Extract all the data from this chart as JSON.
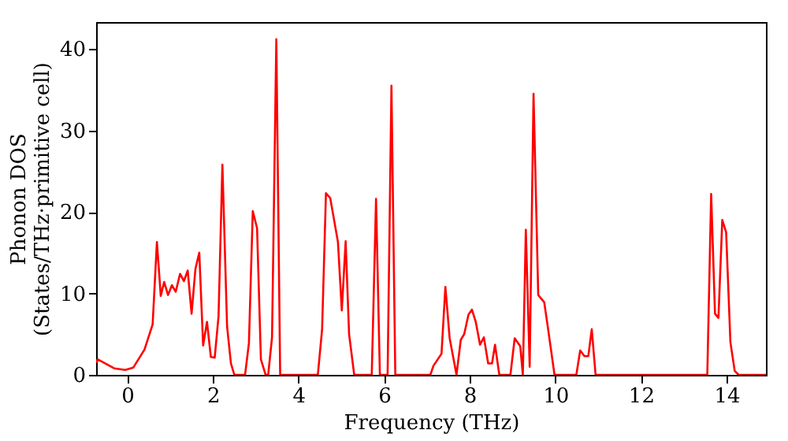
{
  "chart_data": {
    "type": "line",
    "xlabel": "Frequency (THz)",
    "ylabel": "Phonon DOS\n(States/THz·primitive cell)",
    "xlim": [
      -0.73,
      14.92
    ],
    "ylim": [
      0,
      43.3
    ],
    "xticks": [
      0,
      2,
      4,
      6,
      8,
      10,
      12,
      14
    ],
    "yticks": [
      0,
      10,
      20,
      30,
      40
    ],
    "grid": false,
    "marker": "none",
    "line_style": "solid",
    "series": [
      {
        "color": "#ff0000",
        "x": [
          -0.73,
          -0.69,
          -0.31,
          -0.05,
          0.14,
          0.4,
          0.59,
          0.69,
          0.78,
          0.86,
          0.95,
          1.04,
          1.13,
          1.23,
          1.32,
          1.41,
          1.5,
          1.59,
          1.68,
          1.77,
          1.86,
          1.95,
          2.04,
          2.13,
          2.22,
          2.33,
          2.42,
          2.5,
          2.75,
          2.84,
          2.93,
          3.03,
          3.12,
          3.23,
          3.29,
          3.38,
          3.48,
          3.57,
          4.45,
          4.55,
          4.64,
          4.74,
          4.92,
          5.01,
          5.1,
          5.18,
          5.3,
          5.71,
          5.81,
          5.9,
          6.08,
          6.17,
          6.26,
          7.08,
          7.15,
          7.34,
          7.43,
          7.53,
          7.69,
          7.79,
          7.87,
          7.97,
          8.05,
          8.14,
          8.24,
          8.33,
          8.43,
          8.52,
          8.59,
          8.69,
          8.95,
          9.05,
          9.18,
          9.24,
          9.31,
          9.4,
          9.49,
          9.6,
          9.74,
          9.82,
          9.98,
          10.49,
          10.58,
          10.68,
          10.77,
          10.85,
          10.94,
          13.55,
          13.64,
          13.73,
          13.81,
          13.9,
          13.99,
          14.09,
          14.19,
          14.28,
          14.92
        ],
        "values": [
          1.5,
          1.9,
          0.8,
          0.6,
          0.9,
          3.1,
          6.2,
          16.3,
          9.7,
          11.4,
          9.8,
          11,
          10.2,
          12.4,
          11.5,
          12.8,
          7.5,
          13,
          15,
          3.6,
          6.5,
          2.2,
          2.1,
          7.2,
          25.8,
          5.9,
          1.4,
          0,
          0,
          3.9,
          20.1,
          18,
          1.9,
          0,
          0,
          4.6,
          41.2,
          0,
          0,
          5.6,
          22.3,
          21.7,
          16.3,
          7.9,
          16.4,
          5,
          0,
          0,
          21.6,
          0,
          0,
          35.5,
          0,
          0,
          1.1,
          2.6,
          10.8,
          4.5,
          0,
          4.3,
          5,
          7.4,
          8,
          6.5,
          3.7,
          4.6,
          1.4,
          1.4,
          3.7,
          0,
          0,
          4.5,
          3.5,
          0,
          17.8,
          1,
          34.5,
          9.8,
          8.9,
          6,
          0,
          0,
          3,
          2.3,
          2.3,
          5.6,
          0,
          0,
          22.2,
          7.5,
          7,
          19,
          17.5,
          4,
          0.5,
          0,
          0
        ]
      }
    ]
  }
}
